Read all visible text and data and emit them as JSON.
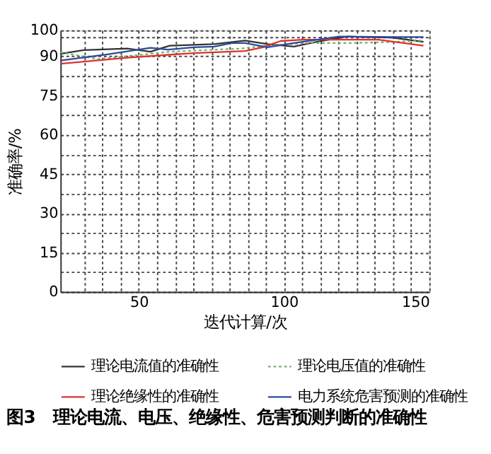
{
  "chart_data": {
    "type": "line",
    "xlabel": "迭代计算/次",
    "ylabel": "准确率/%",
    "annotations": [
      "图3　理论电流、电压、绝缘性、危害预测判断的准确性"
    ],
    "xlim": [
      23,
      150
    ],
    "xticks": [
      {
        "value": 31.25,
        "label": null
      },
      {
        "value": 37.5,
        "label": null
      },
      {
        "value": 43.75,
        "label": null
      },
      50,
      {
        "value": 56.25,
        "label": null
      },
      {
        "value": 62.5,
        "label": null
      },
      {
        "value": 68.75,
        "label": null
      },
      {
        "value": 75,
        "label": null
      },
      {
        "value": 81.25,
        "label": null
      },
      {
        "value": 87.5,
        "label": null
      },
      {
        "value": 93.75,
        "label": null
      },
      100,
      {
        "value": 106.25,
        "label": null
      },
      {
        "value": 112.5,
        "label": null
      },
      {
        "value": 118.75,
        "label": null
      },
      {
        "value": 125,
        "label": null
      },
      {
        "value": 131.25,
        "label": null
      },
      {
        "value": 137.5,
        "label": null
      },
      {
        "value": 143.75,
        "label": null
      },
      150
    ],
    "ylim": [
      0,
      100
    ],
    "yticks": [
      0,
      {
        "value": 7.5,
        "label": null
      },
      15,
      {
        "value": 22.5,
        "label": null
      },
      30,
      {
        "value": 37.5,
        "label": null
      },
      45,
      {
        "value": 52.5,
        "label": null
      },
      60,
      {
        "value": 67.5,
        "label": null
      },
      75,
      {
        "value": 82.5,
        "label": null
      },
      90,
      {
        "value": 97.5,
        "label": null
      },
      100
    ],
    "grid": true,
    "legend": "bottom",
    "line_style": "solid",
    "marker": "none",
    "series": [
      {
        "name": "理论电流值的准确性",
        "color": "#333333",
        "x": [
          23,
          31,
          46,
          54,
          60.6,
          75.9,
          86.6,
          94.3,
          103.4,
          112.6,
          121.8,
          137,
          148
        ],
        "values": [
          91,
          92.4,
          93,
          91.8,
          94.1,
          94.7,
          96.1,
          94.7,
          93.8,
          95.9,
          97.6,
          97.2,
          95.6
        ]
      },
      {
        "name": "理论电压值的准确性",
        "color": "#6db36d",
        "line_style": "dotted",
        "x": [
          23,
          35.7,
          46,
          60.6,
          76,
          85,
          94,
          106.5,
          121.8,
          137,
          148
        ],
        "values": [
          91.6,
          89,
          90.1,
          91.8,
          92.6,
          93,
          94.1,
          95.1,
          95.1,
          95.5,
          96.1
        ]
      },
      {
        "name": "理论绝缘性的准确性",
        "color": "#e03030",
        "x": [
          23,
          46,
          68.8,
          86.6,
          92.7,
          98.8,
          106.5,
          121.8,
          132.5,
          148
        ],
        "values": [
          87.2,
          89.5,
          91.3,
          92.1,
          93.5,
          95.9,
          96.4,
          96.4,
          96.4,
          94.1
        ]
      },
      {
        "name": "电力系统危害预测的准确性",
        "color": "#2e4a9c",
        "x": [
          23,
          38.8,
          54,
          60,
          69,
          76,
          82,
          86.6,
          94.3,
          103.4,
          119,
          137,
          148
        ],
        "values": [
          88.4,
          90.7,
          93.3,
          92.6,
          93.5,
          93.8,
          95.1,
          95.1,
          93.5,
          95.1,
          97.6,
          97.4,
          97.4
        ]
      }
    ]
  }
}
